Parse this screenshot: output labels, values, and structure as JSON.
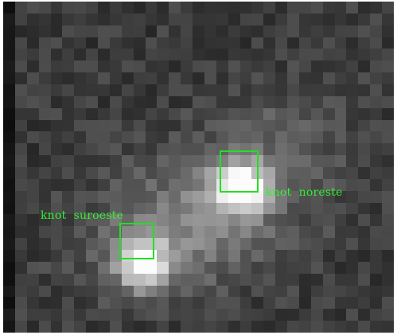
{
  "image": {
    "kind": "grayscale astronomical image",
    "grid_columns": 33,
    "grid_rows": 28,
    "marker_color": "#22e022",
    "label_color": "#33ee33"
  },
  "annotations": {
    "knot_ne": {
      "label": "knot  noreste"
    },
    "knot_sw": {
      "label": "knot  suroeste"
    }
  }
}
